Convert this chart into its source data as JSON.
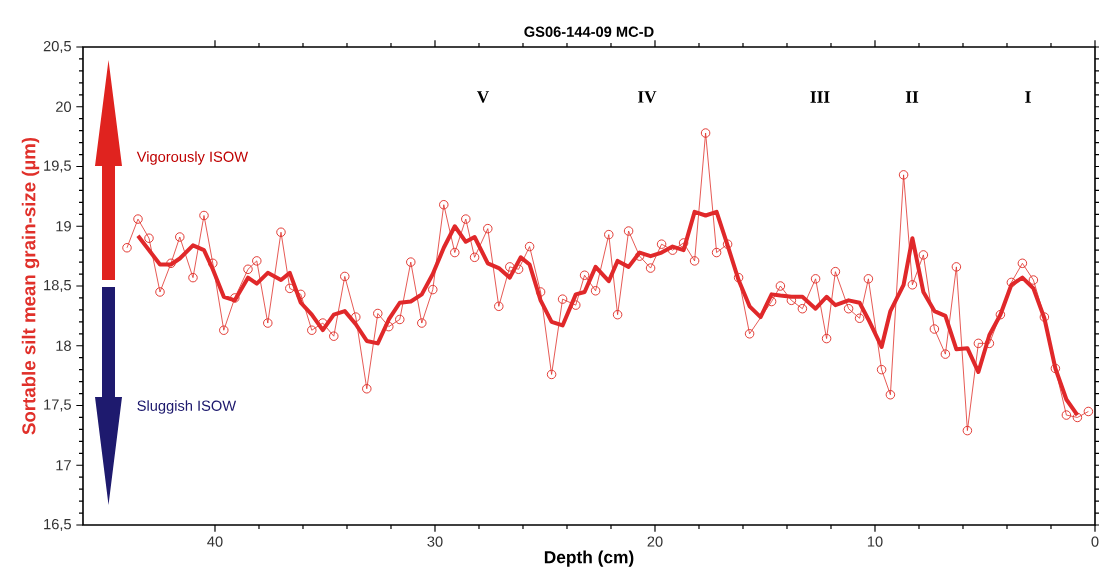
{
  "chart_data": {
    "type": "line",
    "title": "GS06-144-09 MC-D",
    "xlabel": "Depth (cm)",
    "ylabel": "Sortable silt mean grain-size (µm)",
    "xlim": [
      46,
      0
    ],
    "xticks": [
      40,
      30,
      20,
      10,
      0
    ],
    "ylim": [
      16.5,
      20.5
    ],
    "yticks": [
      {
        "value": 16.5,
        "label": "16,5"
      },
      17,
      {
        "value": 17.5,
        "label": "17,5"
      },
      18,
      {
        "value": 18.5,
        "label": "18,5"
      },
      19,
      {
        "value": 19.5,
        "label": "19,5"
      },
      20,
      {
        "value": 20.5,
        "label": "20,5"
      }
    ],
    "grid": false,
    "series": [
      {
        "color": "#e0302a",
        "marker": "circle",
        "line_style": "solid",
        "x": [
          44.0,
          43.5,
          43.0,
          42.5,
          42.0,
          41.6,
          41.0,
          40.5,
          40.1,
          39.6,
          39.1,
          38.5,
          38.1,
          37.6,
          37.0,
          36.6,
          36.1,
          35.6,
          35.1,
          34.6,
          34.1,
          33.6,
          33.1,
          32.6,
          32.1,
          31.6,
          31.1,
          30.6,
          30.1,
          29.6,
          29.1,
          28.6,
          28.2,
          27.6,
          27.1,
          26.6,
          26.2,
          25.7,
          25.2,
          24.7,
          24.2,
          23.6,
          23.2,
          22.7,
          22.1,
          21.7,
          21.2,
          20.7,
          20.2,
          19.7,
          19.2,
          18.7,
          18.2,
          17.7,
          17.2,
          16.7,
          16.2,
          15.7,
          14.7,
          14.3,
          13.8,
          13.3,
          12.7,
          12.2,
          11.8,
          11.2,
          10.7,
          10.3,
          9.7,
          9.3,
          8.7,
          8.3,
          7.8,
          7.3,
          6.8,
          6.3,
          5.8,
          5.3,
          4.8,
          4.3,
          3.8,
          3.3,
          2.8,
          2.3,
          1.8,
          1.3,
          0.8,
          0.3
        ],
        "values": [
          18.82,
          19.06,
          18.9,
          18.45,
          18.69,
          18.91,
          18.57,
          19.09,
          18.69,
          18.13,
          18.4,
          18.64,
          18.71,
          18.19,
          18.95,
          18.48,
          18.43,
          18.13,
          18.19,
          18.08,
          18.58,
          18.24,
          17.64,
          18.27,
          18.16,
          18.22,
          18.7,
          18.19,
          18.47,
          19.18,
          18.78,
          19.06,
          18.74,
          18.98,
          18.33,
          18.66,
          18.64,
          18.83,
          18.45,
          17.76,
          18.39,
          18.34,
          18.59,
          18.46,
          18.93,
          18.26,
          18.96,
          18.75,
          18.65,
          18.85,
          18.8,
          18.86,
          18.71,
          19.78,
          18.78,
          18.85,
          18.57,
          18.1,
          18.37,
          18.5,
          18.38,
          18.31,
          18.56,
          18.06,
          18.62,
          18.31,
          18.23,
          18.56,
          17.8,
          17.59,
          19.43,
          18.51,
          18.76,
          18.14,
          17.93,
          18.66,
          17.29,
          18.02,
          18.02,
          18.26,
          18.53,
          18.69,
          18.55,
          18.24,
          17.81,
          17.42,
          17.4,
          17.45
        ]
      },
      {
        "color": "#e0282a",
        "marker": "none",
        "line_style": "solid",
        "x": [
          43.5,
          42.5,
          42.0,
          41.6,
          41.0,
          40.5,
          40.1,
          39.6,
          39.1,
          38.5,
          38.1,
          37.6,
          37.0,
          36.6,
          36.1,
          35.6,
          35.1,
          34.6,
          34.1,
          33.6,
          33.1,
          32.6,
          32.1,
          31.6,
          31.1,
          30.6,
          30.1,
          29.6,
          29.1,
          28.6,
          28.2,
          27.6,
          27.1,
          26.6,
          26.1,
          25.7,
          25.2,
          24.7,
          24.2,
          23.6,
          23.2,
          22.7,
          22.1,
          21.7,
          21.2,
          20.7,
          20.2,
          19.7,
          19.2,
          18.7,
          18.2,
          17.7,
          17.2,
          16.7,
          16.2,
          15.7,
          15.2,
          14.7,
          14.3,
          13.8,
          13.3,
          12.7,
          12.2,
          11.8,
          11.2,
          10.7,
          10.3,
          9.7,
          9.3,
          8.7,
          8.3,
          7.8,
          7.3,
          6.8,
          6.3,
          5.8,
          5.3,
          4.8,
          4.3,
          3.8,
          3.3,
          2.8,
          2.3,
          1.8,
          1.3,
          0.8
        ],
        "values": [
          18.92,
          18.68,
          18.68,
          18.73,
          18.84,
          18.8,
          18.64,
          18.41,
          18.38,
          18.57,
          18.52,
          18.61,
          18.55,
          18.61,
          18.36,
          18.26,
          18.13,
          18.26,
          18.29,
          18.18,
          18.04,
          18.02,
          18.22,
          18.36,
          18.37,
          18.43,
          18.6,
          18.82,
          19.0,
          18.87,
          18.91,
          18.69,
          18.65,
          18.57,
          18.74,
          18.68,
          18.38,
          18.2,
          18.17,
          18.43,
          18.45,
          18.66,
          18.54,
          18.71,
          18.66,
          18.78,
          18.75,
          18.78,
          18.83,
          18.8,
          19.12,
          19.09,
          19.12,
          18.84,
          18.55,
          18.33,
          18.24,
          18.43,
          18.42,
          18.41,
          18.41,
          18.31,
          18.41,
          18.34,
          18.38,
          18.36,
          18.22,
          17.99,
          18.29,
          18.51,
          18.9,
          18.45,
          18.29,
          18.25,
          17.97,
          17.98,
          17.78,
          18.09,
          18.26,
          18.51,
          18.57,
          18.48,
          18.23,
          17.81,
          17.55,
          17.42
        ]
      }
    ],
    "annotations": [
      "V",
      "IV",
      "III",
      "II",
      "I",
      "Vigorously ISOW",
      "Sluggish ISOW"
    ]
  }
}
